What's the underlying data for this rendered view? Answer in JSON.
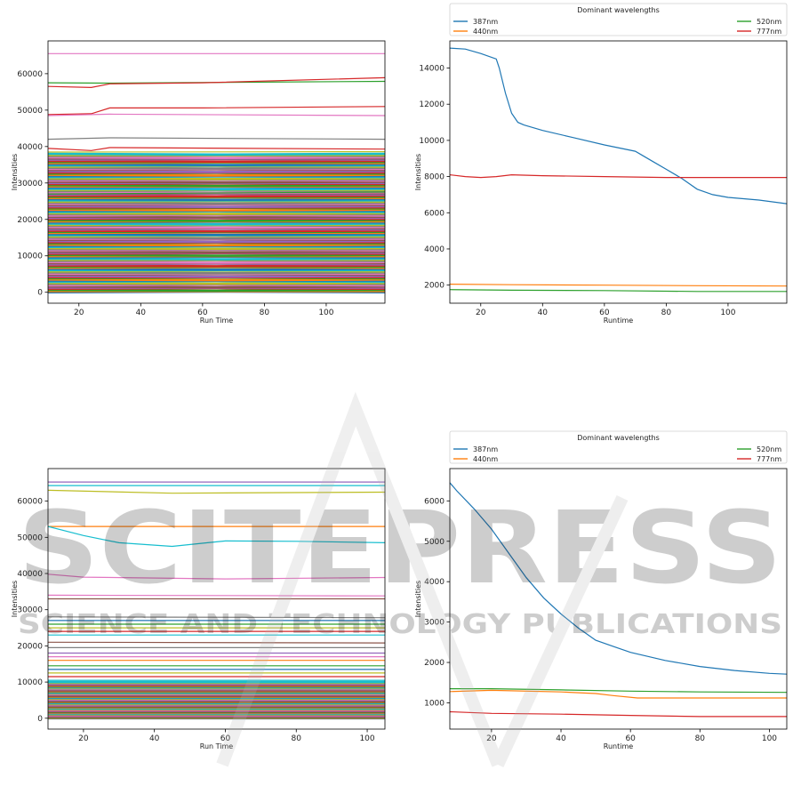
{
  "watermark": {
    "main": "SCITEPRESS",
    "sub": "SCIENCE AND TECHNOLOGY PUBLICATIONS"
  },
  "chart_data": [
    {
      "type": "line",
      "xlabel": "Run Time",
      "ylabel": "Intensities",
      "xlim": [
        10,
        119
      ],
      "ylim": [
        -3000,
        69000
      ],
      "xticks": [
        20,
        40,
        60,
        80,
        100
      ],
      "yticks": [
        0,
        10000,
        20000,
        30000,
        40000,
        50000,
        60000
      ],
      "series": [
        {
          "color": "#e377c2",
          "x": [
            10,
            119
          ],
          "y": [
            65500,
            65500
          ]
        },
        {
          "color": "#2ca02c",
          "x": [
            10,
            30,
            119
          ],
          "y": [
            57500,
            57400,
            57900
          ]
        },
        {
          "color": "#d62728",
          "x": [
            10,
            24,
            30,
            60,
            119
          ],
          "y": [
            56500,
            56200,
            57200,
            57500,
            58900
          ]
        },
        {
          "color": "#d62728",
          "x": [
            10,
            24,
            30,
            60,
            119
          ],
          "y": [
            48800,
            49000,
            50600,
            50600,
            51000
          ]
        },
        {
          "color": "#e377c2",
          "x": [
            10,
            30,
            119
          ],
          "y": [
            48500,
            48900,
            48500
          ]
        },
        {
          "color": "#7f7f7f",
          "x": [
            10,
            30,
            119
          ],
          "y": [
            42000,
            42400,
            42000
          ]
        },
        {
          "color": "#d62728",
          "x": [
            10,
            24,
            30,
            119
          ],
          "y": [
            39500,
            38900,
            39700,
            39300
          ]
        },
        {
          "color": "#bcbd22",
          "x": [
            10,
            119
          ],
          "y": [
            38500,
            38600
          ]
        },
        {
          "color": "#2ca02c",
          "x": [
            10,
            119
          ],
          "y": [
            27000,
            27500
          ]
        }
      ],
      "band": {
        "from": 0,
        "to": 38000,
        "count": 120
      }
    },
    {
      "type": "line",
      "xlabel": "Runtime",
      "ylabel": "Intensities",
      "xlim": [
        10,
        119
      ],
      "ylim": [
        1000,
        15500
      ],
      "xticks": [
        20,
        40,
        60,
        80,
        100
      ],
      "yticks": [
        2000,
        4000,
        6000,
        8000,
        10000,
        12000,
        14000
      ],
      "legend": {
        "title": "Dominant wavelengths",
        "entries": [
          "387nm",
          "440nm",
          "520nm",
          "777nm"
        ]
      },
      "series": [
        {
          "name": "387nm",
          "color": "#1f77b4",
          "x": [
            10,
            15,
            20,
            25,
            26,
            28,
            30,
            32,
            34,
            40,
            50,
            60,
            70,
            72,
            76,
            80,
            85,
            90,
            95,
            100,
            110,
            119
          ],
          "y": [
            15100,
            15050,
            14800,
            14500,
            14000,
            12600,
            11500,
            11000,
            10850,
            10550,
            10150,
            9750,
            9400,
            9200,
            8800,
            8400,
            7900,
            7300,
            7000,
            6850,
            6700,
            6500
          ]
        },
        {
          "name": "440nm",
          "color": "#ff7f0e",
          "x": [
            10,
            30,
            60,
            90,
            119
          ],
          "y": [
            2050,
            2020,
            2000,
            1970,
            1950
          ]
        },
        {
          "name": "520nm",
          "color": "#2ca02c",
          "x": [
            10,
            30,
            60,
            90,
            119
          ],
          "y": [
            1750,
            1720,
            1700,
            1650,
            1650
          ]
        },
        {
          "name": "777nm",
          "color": "#d62728",
          "x": [
            10,
            15,
            20,
            25,
            30,
            40,
            60,
            80,
            100,
            119
          ],
          "y": [
            8100,
            8000,
            7950,
            8000,
            8100,
            8050,
            8000,
            7950,
            7950,
            7950
          ]
        }
      ]
    },
    {
      "type": "line",
      "xlabel": "Run Time",
      "ylabel": "Intensities",
      "xlim": [
        10,
        105
      ],
      "ylim": [
        -3000,
        69000
      ],
      "xticks": [
        20,
        40,
        60,
        80,
        100
      ],
      "yticks": [
        0,
        10000,
        20000,
        30000,
        40000,
        50000,
        60000
      ],
      "series": [
        {
          "color": "#9467bd",
          "x": [
            10,
            105
          ],
          "y": [
            65300,
            65300
          ]
        },
        {
          "color": "#17becf",
          "x": [
            10,
            105
          ],
          "y": [
            64300,
            64300
          ]
        },
        {
          "color": "#bcbd22",
          "x": [
            10,
            45,
            105
          ],
          "y": [
            63000,
            62200,
            62500
          ]
        },
        {
          "color": "#ff7f0e",
          "x": [
            10,
            105
          ],
          "y": [
            53000,
            53000
          ]
        },
        {
          "color": "#17becf",
          "x": [
            10,
            20,
            30,
            45,
            55,
            60,
            80,
            105
          ],
          "y": [
            53000,
            50500,
            48500,
            47500,
            48500,
            49000,
            48900,
            48500
          ]
        },
        {
          "color": "#e377c2",
          "x": [
            10,
            20,
            60,
            105
          ],
          "y": [
            39800,
            39000,
            38500,
            38900
          ]
        },
        {
          "color": "#e377c2",
          "x": [
            10,
            105
          ],
          "y": [
            34000,
            33800
          ]
        },
        {
          "color": "#8c564b",
          "x": [
            10,
            105
          ],
          "y": [
            33000,
            33000
          ]
        },
        {
          "color": "#7f7f7f",
          "x": [
            10,
            105
          ],
          "y": [
            28000,
            27800
          ]
        },
        {
          "color": "#1f77b4",
          "x": [
            10,
            105
          ],
          "y": [
            27000,
            27000
          ]
        },
        {
          "color": "#2ca02c",
          "x": [
            10,
            105
          ],
          "y": [
            26000,
            26000
          ]
        },
        {
          "color": "#bcbd22",
          "x": [
            10,
            105
          ],
          "y": [
            25000,
            25000
          ]
        },
        {
          "color": "#d62728",
          "x": [
            10,
            105
          ],
          "y": [
            24000,
            24000
          ]
        },
        {
          "color": "#17becf",
          "x": [
            10,
            105
          ],
          "y": [
            23000,
            23000
          ]
        },
        {
          "color": "#8c564b",
          "x": [
            10,
            105
          ],
          "y": [
            21000,
            20800
          ]
        },
        {
          "color": "#7f7f7f",
          "x": [
            10,
            105
          ],
          "y": [
            19500,
            19500
          ]
        },
        {
          "color": "#9467bd",
          "x": [
            10,
            105
          ],
          "y": [
            18000,
            18000
          ]
        },
        {
          "color": "#e377c2",
          "x": [
            10,
            105
          ],
          "y": [
            17000,
            17000
          ]
        },
        {
          "color": "#ff7f0e",
          "x": [
            10,
            105
          ],
          "y": [
            16000,
            16000
          ]
        },
        {
          "color": "#2ca02c",
          "x": [
            10,
            105
          ],
          "y": [
            14500,
            14500
          ]
        },
        {
          "color": "#1f77b4",
          "x": [
            10,
            105
          ],
          "y": [
            13500,
            13500
          ]
        },
        {
          "color": "#bcbd22",
          "x": [
            10,
            105
          ],
          "y": [
            12500,
            12500
          ]
        },
        {
          "color": "#d62728",
          "x": [
            10,
            105
          ],
          "y": [
            11500,
            11500
          ]
        },
        {
          "color": "#17becf",
          "x": [
            10,
            105
          ],
          "y": [
            10500,
            10500
          ]
        }
      ],
      "band": {
        "from": 0,
        "to": 10000,
        "count": 70
      }
    },
    {
      "type": "line",
      "xlabel": "Runtime",
      "ylabel": "Intensities",
      "xlim": [
        8,
        105
      ],
      "ylim": [
        350,
        6800
      ],
      "xticks": [
        20,
        40,
        60,
        80,
        100
      ],
      "yticks": [
        1000,
        2000,
        3000,
        4000,
        5000,
        6000
      ],
      "legend": {
        "title": "Dominant wavelengths",
        "entries": [
          "387nm",
          "440nm",
          "520nm",
          "777nm"
        ]
      },
      "series": [
        {
          "name": "387nm",
          "color": "#1f77b4",
          "x": [
            8,
            10,
            15,
            20,
            25,
            30,
            35,
            40,
            45,
            50,
            55,
            60,
            70,
            80,
            90,
            100,
            105
          ],
          "y": [
            6450,
            6250,
            5800,
            5300,
            4700,
            4100,
            3600,
            3200,
            2850,
            2550,
            2400,
            2250,
            2050,
            1900,
            1800,
            1730,
            1710
          ]
        },
        {
          "name": "440nm",
          "color": "#ff7f0e",
          "x": [
            8,
            20,
            40,
            50,
            55,
            62,
            80,
            105
          ],
          "y": [
            1280,
            1310,
            1270,
            1230,
            1180,
            1120,
            1120,
            1120
          ]
        },
        {
          "name": "520nm",
          "color": "#2ca02c",
          "x": [
            8,
            20,
            40,
            60,
            80,
            105
          ],
          "y": [
            1350,
            1350,
            1320,
            1290,
            1270,
            1260
          ]
        },
        {
          "name": "777nm",
          "color": "#d62728",
          "x": [
            8,
            20,
            40,
            60,
            80,
            105
          ],
          "y": [
            780,
            740,
            720,
            690,
            660,
            660
          ]
        }
      ]
    }
  ]
}
